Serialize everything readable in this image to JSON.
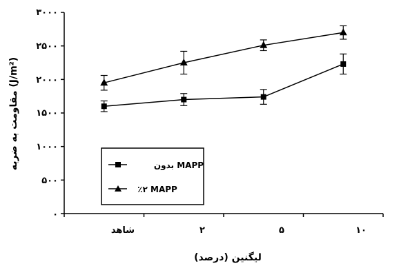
{
  "chart_data": {
    "type": "line",
    "categories": [
      "شاهد",
      "۲",
      "۵",
      "۱۰"
    ],
    "ylabel": "مقاومت به ضربه (J/m²)",
    "xlabel": "لیگنین (درصد)",
    "ylim": [
      0,
      3000
    ],
    "yticks": [
      0,
      500,
      1000,
      1500,
      2000,
      2500,
      3000
    ],
    "ytick_labels": [
      "۰",
      "۵۰۰",
      "۱۰۰۰",
      "۱۵۰۰",
      "۲۰۰۰",
      "۲۵۰۰",
      "۳۰۰۰"
    ],
    "legend_position": "bottom-left",
    "grid": false,
    "series": [
      {
        "name": "بدون MAPP",
        "marker": "square",
        "color": "#000000",
        "values": [
          1600,
          1700,
          1740,
          2230
        ],
        "error": [
          80,
          90,
          110,
          150
        ]
      },
      {
        "name": "٪۲ MAPP",
        "marker": "triangle",
        "color": "#000000",
        "values": [
          1950,
          2250,
          2510,
          2700
        ],
        "error": [
          110,
          170,
          80,
          100
        ]
      }
    ]
  }
}
